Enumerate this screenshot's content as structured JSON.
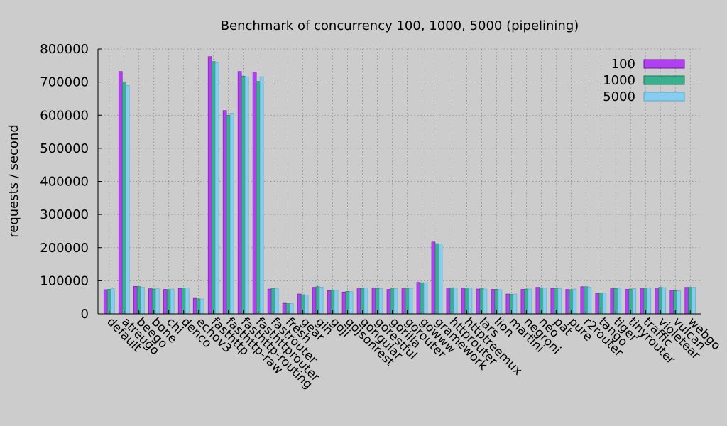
{
  "chart_data": {
    "type": "bar",
    "title": "Benchmark of concurrency 100, 1000, 5000 (pipelining)",
    "xlabel": "",
    "ylabel": "requests / second",
    "ylim": [
      0,
      800000
    ],
    "yticks": [
      "0",
      "100000",
      "200000",
      "300000",
      "400000",
      "500000",
      "600000",
      "700000",
      "800000"
    ],
    "grid": true,
    "legend_position": "top-right",
    "categories": [
      "default",
      "atreugo",
      "beego",
      "bone",
      "chi",
      "denco",
      "echov3",
      "fasthttp",
      "fasthttp-raw",
      "fasthttp-routing",
      "fasthttprouter",
      "fastrouter",
      "fresh",
      "gear",
      "gin",
      "goji",
      "gojsonrest",
      "gongular",
      "gorestful",
      "gorilla",
      "gorouter",
      "gowww",
      "gramework",
      "httprouter",
      "httptreemux",
      "lars",
      "lion",
      "martini",
      "negroni",
      "neo",
      "pat",
      "pure",
      "r2router",
      "tango",
      "tiger",
      "tinyrouter",
      "traffic",
      "violetear",
      "vulcan",
      "webgo"
    ],
    "series": [
      {
        "name": "100",
        "color": "#b040f0",
        "values": [
          73000,
          732000,
          83000,
          76000,
          74000,
          77000,
          47000,
          777000,
          614000,
          732000,
          730000,
          75000,
          32000,
          60000,
          80000,
          70000,
          66000,
          76000,
          78000,
          74000,
          76000,
          95000,
          217000,
          78000,
          78000,
          75000,
          74000,
          60000,
          74000,
          80000,
          77000,
          74000,
          82000,
          62000,
          76000,
          74000,
          76000,
          78000,
          71000,
          80000
        ]
      },
      {
        "name": "1000",
        "color": "#3ab08e",
        "values": [
          74000,
          700000,
          82000,
          75000,
          73000,
          78000,
          45000,
          762000,
          600000,
          718000,
          702000,
          77000,
          31000,
          58000,
          82000,
          72000,
          68000,
          77000,
          77000,
          76000,
          76000,
          94000,
          212000,
          79000,
          78000,
          76000,
          74000,
          59000,
          75000,
          79000,
          76000,
          73000,
          82000,
          63000,
          77000,
          75000,
          76000,
          80000,
          70000,
          80000
        ]
      },
      {
        "name": "5000",
        "color": "#87cdf0",
        "values": [
          76000,
          690000,
          80000,
          76000,
          75000,
          78000,
          45000,
          758000,
          606000,
          716000,
          716000,
          76000,
          31000,
          57000,
          81000,
          71000,
          67000,
          78000,
          76000,
          76000,
          77000,
          94000,
          211000,
          78000,
          78000,
          75000,
          73000,
          60000,
          75000,
          78000,
          77000,
          75000,
          80000,
          63000,
          78000,
          76000,
          78000,
          79000,
          70000,
          80000
        ]
      }
    ]
  }
}
